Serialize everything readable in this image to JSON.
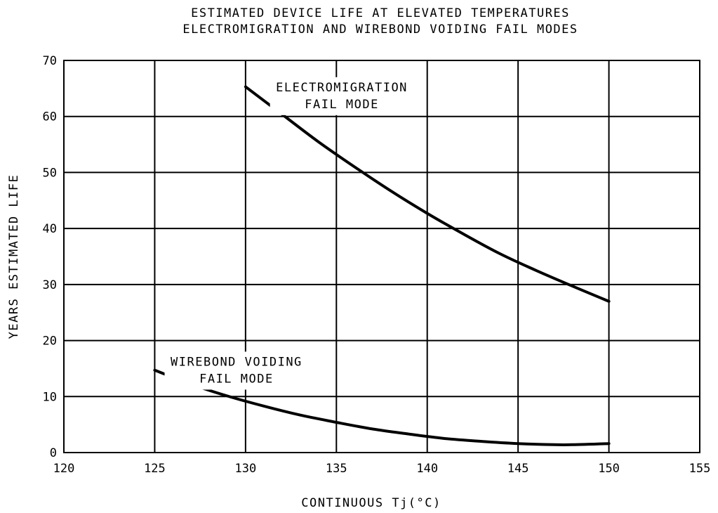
{
  "chart_data": {
    "type": "line",
    "title": "ESTIMATED DEVICE LIFE AT ELEVATED TEMPERATURES",
    "subtitle": "ELECTROMIGRATION AND WIREBOND VOIDING FAIL MODES",
    "xlabel": "CONTINUOUS Tj(°C)",
    "ylabel": "YEARS ESTIMATED LIFE",
    "xlim": [
      120,
      155
    ],
    "ylim": [
      0,
      70
    ],
    "x_ticks": [
      120,
      125,
      130,
      135,
      140,
      145,
      150,
      155
    ],
    "y_ticks": [
      0,
      10,
      20,
      30,
      40,
      50,
      60,
      70
    ],
    "grid": true,
    "series": [
      {
        "label_lines": [
          "ELECTROMIGRATION",
          "FAIL MODE"
        ],
        "label_anchor": [
          135.3,
          64.5
        ],
        "x": [
          130,
          132,
          134,
          136,
          138,
          140,
          142,
          144,
          146,
          148,
          150
        ],
        "y": [
          65.3,
          60.4,
          55.5,
          51.0,
          46.7,
          42.7,
          39.0,
          35.5,
          32.5,
          29.7,
          27.0
        ]
      },
      {
        "label_lines": [
          "WIREBOND VOIDING",
          "FAIL MODE"
        ],
        "label_anchor": [
          129.5,
          15.5
        ],
        "x": [
          125,
          127,
          129,
          131,
          133,
          135,
          137,
          139,
          141,
          143,
          145,
          147,
          148,
          150
        ],
        "y": [
          14.7,
          12.2,
          10.1,
          8.3,
          6.7,
          5.4,
          4.2,
          3.3,
          2.5,
          2.0,
          1.6,
          1.4,
          1.4,
          1.6
        ]
      }
    ]
  }
}
